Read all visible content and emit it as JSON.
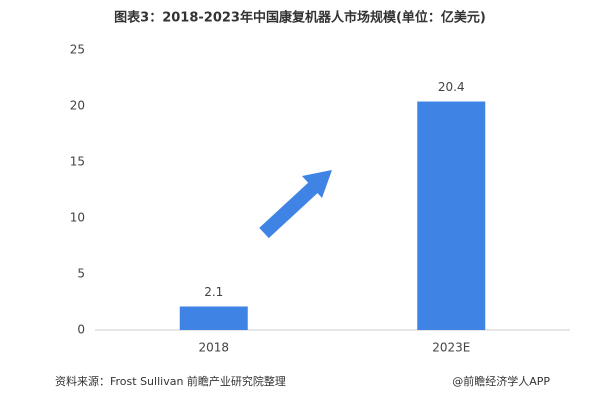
{
  "chart_data": {
    "type": "bar",
    "title": "图表3：2018-2023年中国康复机器人市场规模(单位：亿美元)",
    "categories": [
      "2018",
      "2023E"
    ],
    "values": [
      2.1,
      20.4
    ],
    "color": "#3f84e5",
    "ylim": [
      0,
      25
    ],
    "yticks": [
      0,
      5,
      10,
      15,
      20,
      25
    ],
    "source": "资料来源：Frost Sullivan 前瞻产业研究院整理",
    "credit": "@前瞻经济学人APP"
  }
}
